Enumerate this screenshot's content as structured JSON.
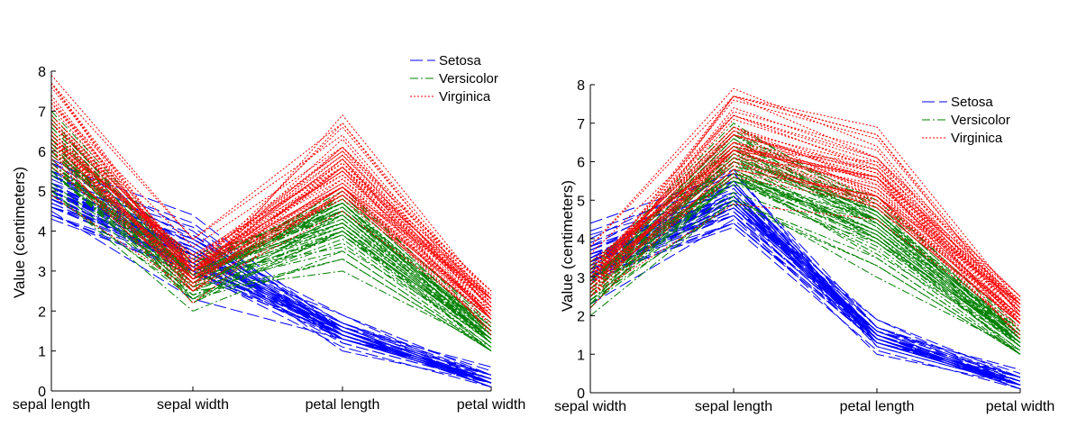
{
  "chart_data": [
    {
      "type": "line",
      "title": "",
      "ylabel": "Value (centimeters)",
      "ylim": [
        0,
        8
      ],
      "yticks": [
        0,
        1,
        2,
        3,
        4,
        5,
        6,
        7,
        8
      ],
      "categories": [
        "sepal length",
        "sepal width",
        "petal length",
        "petal width"
      ],
      "grid": false,
      "legend_position": "top-right",
      "series": [
        {
          "name": "Setosa",
          "color": "#0000ff",
          "dash": "dashed",
          "lines": [
            [
              5.1,
              3.5,
              1.4,
              0.2
            ],
            [
              4.9,
              3.0,
              1.4,
              0.2
            ],
            [
              4.7,
              3.2,
              1.3,
              0.2
            ],
            [
              4.6,
              3.1,
              1.5,
              0.2
            ],
            [
              5.0,
              3.6,
              1.4,
              0.2
            ],
            [
              5.4,
              3.9,
              1.7,
              0.4
            ],
            [
              4.6,
              3.4,
              1.4,
              0.3
            ],
            [
              5.0,
              3.4,
              1.5,
              0.2
            ],
            [
              4.4,
              2.9,
              1.4,
              0.2
            ],
            [
              4.9,
              3.1,
              1.5,
              0.1
            ],
            [
              5.4,
              3.7,
              1.5,
              0.2
            ],
            [
              4.8,
              3.4,
              1.6,
              0.2
            ],
            [
              4.8,
              3.0,
              1.4,
              0.1
            ],
            [
              4.3,
              3.0,
              1.1,
              0.1
            ],
            [
              5.8,
              4.0,
              1.2,
              0.2
            ],
            [
              5.7,
              4.4,
              1.5,
              0.4
            ],
            [
              5.4,
              3.9,
              1.3,
              0.4
            ],
            [
              5.1,
              3.5,
              1.4,
              0.3
            ],
            [
              5.7,
              3.8,
              1.7,
              0.3
            ],
            [
              5.1,
              3.8,
              1.5,
              0.3
            ],
            [
              5.4,
              3.4,
              1.7,
              0.2
            ],
            [
              5.1,
              3.7,
              1.5,
              0.4
            ],
            [
              4.6,
              3.6,
              1.0,
              0.2
            ],
            [
              5.1,
              3.3,
              1.7,
              0.5
            ],
            [
              4.8,
              3.4,
              1.9,
              0.2
            ],
            [
              5.0,
              3.0,
              1.6,
              0.2
            ],
            [
              5.0,
              3.4,
              1.6,
              0.4
            ],
            [
              5.2,
              3.5,
              1.5,
              0.2
            ],
            [
              5.2,
              3.4,
              1.4,
              0.2
            ],
            [
              4.7,
              3.2,
              1.6,
              0.2
            ],
            [
              4.8,
              3.1,
              1.6,
              0.2
            ],
            [
              5.4,
              3.4,
              1.5,
              0.4
            ],
            [
              5.2,
              4.1,
              1.5,
              0.1
            ],
            [
              5.5,
              4.2,
              1.4,
              0.2
            ],
            [
              4.9,
              3.1,
              1.5,
              0.2
            ],
            [
              5.0,
              3.2,
              1.2,
              0.2
            ],
            [
              5.5,
              3.5,
              1.3,
              0.2
            ],
            [
              4.9,
              3.6,
              1.4,
              0.1
            ],
            [
              4.4,
              3.0,
              1.3,
              0.2
            ],
            [
              5.1,
              3.4,
              1.5,
              0.2
            ],
            [
              5.0,
              3.5,
              1.3,
              0.3
            ],
            [
              4.5,
              2.3,
              1.3,
              0.3
            ],
            [
              4.4,
              3.2,
              1.3,
              0.2
            ],
            [
              5.0,
              3.5,
              1.6,
              0.6
            ],
            [
              5.1,
              3.8,
              1.9,
              0.4
            ],
            [
              4.8,
              3.0,
              1.4,
              0.3
            ],
            [
              5.1,
              3.8,
              1.6,
              0.2
            ],
            [
              4.6,
              3.2,
              1.4,
              0.2
            ],
            [
              5.3,
              3.7,
              1.5,
              0.2
            ],
            [
              5.0,
              3.3,
              1.4,
              0.2
            ]
          ]
        },
        {
          "name": "Versicolor",
          "color": "#008000",
          "dash": "dashdot",
          "lines": [
            [
              7.0,
              3.2,
              4.7,
              1.4
            ],
            [
              6.4,
              3.2,
              4.5,
              1.5
            ],
            [
              6.9,
              3.1,
              4.9,
              1.5
            ],
            [
              5.5,
              2.3,
              4.0,
              1.3
            ],
            [
              6.5,
              2.8,
              4.6,
              1.5
            ],
            [
              5.7,
              2.8,
              4.5,
              1.3
            ],
            [
              6.3,
              3.3,
              4.7,
              1.6
            ],
            [
              4.9,
              2.4,
              3.3,
              1.0
            ],
            [
              6.6,
              2.9,
              4.6,
              1.3
            ],
            [
              5.2,
              2.7,
              3.9,
              1.4
            ],
            [
              5.0,
              2.0,
              3.5,
              1.0
            ],
            [
              5.9,
              3.0,
              4.2,
              1.5
            ],
            [
              6.0,
              2.2,
              4.0,
              1.0
            ],
            [
              6.1,
              2.9,
              4.7,
              1.4
            ],
            [
              5.6,
              2.9,
              3.6,
              1.3
            ],
            [
              6.7,
              3.1,
              4.4,
              1.4
            ],
            [
              5.6,
              3.0,
              4.5,
              1.5
            ],
            [
              5.8,
              2.7,
              4.1,
              1.0
            ],
            [
              6.2,
              2.2,
              4.5,
              1.5
            ],
            [
              5.6,
              2.5,
              3.9,
              1.1
            ],
            [
              5.9,
              3.2,
              4.8,
              1.8
            ],
            [
              6.1,
              2.8,
              4.0,
              1.3
            ],
            [
              6.3,
              2.5,
              4.9,
              1.5
            ],
            [
              6.1,
              2.8,
              4.7,
              1.2
            ],
            [
              6.4,
              2.9,
              4.3,
              1.3
            ],
            [
              6.6,
              3.0,
              4.4,
              1.4
            ],
            [
              6.8,
              2.8,
              4.8,
              1.4
            ],
            [
              6.7,
              3.0,
              5.0,
              1.7
            ],
            [
              6.0,
              2.9,
              4.5,
              1.5
            ],
            [
              5.7,
              2.6,
              3.5,
              1.0
            ],
            [
              5.5,
              2.4,
              3.8,
              1.1
            ],
            [
              5.5,
              2.4,
              3.7,
              1.0
            ],
            [
              5.8,
              2.7,
              3.9,
              1.2
            ],
            [
              6.0,
              2.7,
              5.1,
              1.6
            ],
            [
              5.4,
              3.0,
              4.5,
              1.5
            ],
            [
              6.0,
              3.4,
              4.5,
              1.6
            ],
            [
              6.7,
              3.1,
              4.7,
              1.5
            ],
            [
              6.3,
              2.3,
              4.4,
              1.3
            ],
            [
              5.6,
              3.0,
              4.1,
              1.3
            ],
            [
              5.5,
              2.5,
              4.0,
              1.3
            ],
            [
              5.5,
              2.6,
              4.4,
              1.2
            ],
            [
              6.1,
              3.0,
              4.6,
              1.4
            ],
            [
              5.8,
              2.6,
              4.0,
              1.2
            ],
            [
              5.0,
              2.3,
              3.3,
              1.0
            ],
            [
              5.6,
              2.7,
              4.2,
              1.3
            ],
            [
              5.7,
              3.0,
              4.2,
              1.2
            ],
            [
              5.7,
              2.9,
              4.2,
              1.3
            ],
            [
              6.2,
              2.9,
              4.3,
              1.3
            ],
            [
              5.1,
              2.5,
              3.0,
              1.1
            ],
            [
              5.7,
              2.8,
              4.1,
              1.3
            ]
          ]
        },
        {
          "name": "Virginica",
          "color": "#ff0000",
          "dash": "dotted",
          "lines": [
            [
              6.3,
              3.3,
              6.0,
              2.5
            ],
            [
              5.8,
              2.7,
              5.1,
              1.9
            ],
            [
              7.1,
              3.0,
              5.9,
              2.1
            ],
            [
              6.3,
              2.9,
              5.6,
              1.8
            ],
            [
              6.5,
              3.0,
              5.8,
              2.2
            ],
            [
              7.6,
              3.0,
              6.6,
              2.1
            ],
            [
              4.9,
              2.5,
              4.5,
              1.7
            ],
            [
              7.3,
              2.9,
              6.3,
              1.8
            ],
            [
              6.7,
              2.5,
              5.8,
              1.8
            ],
            [
              7.2,
              3.6,
              6.1,
              2.5
            ],
            [
              6.5,
              3.2,
              5.1,
              2.0
            ],
            [
              6.4,
              2.7,
              5.3,
              1.9
            ],
            [
              6.8,
              3.0,
              5.5,
              2.1
            ],
            [
              5.7,
              2.5,
              5.0,
              2.0
            ],
            [
              5.8,
              2.8,
              5.1,
              2.4
            ],
            [
              6.4,
              3.2,
              5.3,
              2.3
            ],
            [
              6.5,
              3.0,
              5.5,
              1.8
            ],
            [
              7.7,
              3.8,
              6.7,
              2.2
            ],
            [
              7.7,
              2.6,
              6.9,
              2.3
            ],
            [
              6.0,
              2.2,
              5.0,
              1.5
            ],
            [
              6.9,
              3.2,
              5.7,
              2.3
            ],
            [
              5.6,
              2.8,
              4.9,
              2.0
            ],
            [
              7.7,
              2.8,
              6.7,
              2.0
            ],
            [
              6.3,
              2.7,
              4.9,
              1.8
            ],
            [
              6.7,
              3.3,
              5.7,
              2.1
            ],
            [
              7.2,
              3.2,
              6.0,
              1.8
            ],
            [
              6.2,
              2.8,
              4.8,
              1.8
            ],
            [
              6.1,
              3.0,
              4.9,
              1.8
            ],
            [
              6.4,
              2.8,
              5.6,
              2.1
            ],
            [
              7.2,
              3.0,
              5.8,
              1.6
            ],
            [
              7.4,
              2.8,
              6.1,
              1.9
            ],
            [
              7.9,
              3.8,
              6.4,
              2.0
            ],
            [
              6.4,
              2.8,
              5.6,
              2.2
            ],
            [
              6.3,
              2.8,
              5.1,
              1.5
            ],
            [
              6.1,
              2.6,
              5.6,
              1.4
            ],
            [
              7.7,
              3.0,
              6.1,
              2.3
            ],
            [
              6.3,
              3.4,
              5.6,
              2.4
            ],
            [
              6.4,
              3.1,
              5.5,
              1.8
            ],
            [
              6.0,
              3.0,
              4.8,
              1.8
            ],
            [
              6.9,
              3.1,
              5.4,
              2.1
            ],
            [
              6.7,
              3.1,
              5.6,
              2.4
            ],
            [
              6.9,
              3.1,
              5.1,
              2.3
            ],
            [
              5.8,
              2.7,
              5.1,
              1.9
            ],
            [
              6.8,
              3.2,
              5.9,
              2.3
            ],
            [
              6.7,
              3.3,
              5.7,
              2.5
            ],
            [
              6.7,
              3.0,
              5.2,
              2.3
            ],
            [
              6.3,
              2.5,
              5.0,
              1.9
            ],
            [
              6.5,
              3.0,
              5.2,
              2.0
            ],
            [
              6.2,
              3.4,
              5.4,
              2.3
            ],
            [
              5.9,
              3.0,
              5.1,
              1.8
            ]
          ]
        }
      ]
    },
    {
      "type": "line",
      "title": "",
      "ylabel": "Value (centimeters)",
      "ylim": [
        0,
        8
      ],
      "yticks": [
        0,
        1,
        2,
        3,
        4,
        5,
        6,
        7,
        8
      ],
      "categories": [
        "sepal width",
        "sepal length",
        "petal length",
        "petal width"
      ],
      "dimension_order_from_left_chart": [
        1,
        0,
        2,
        3
      ],
      "grid": false,
      "legend_position": "top-right",
      "series_names": [
        "Setosa",
        "Versicolor",
        "Virginica"
      ]
    }
  ]
}
